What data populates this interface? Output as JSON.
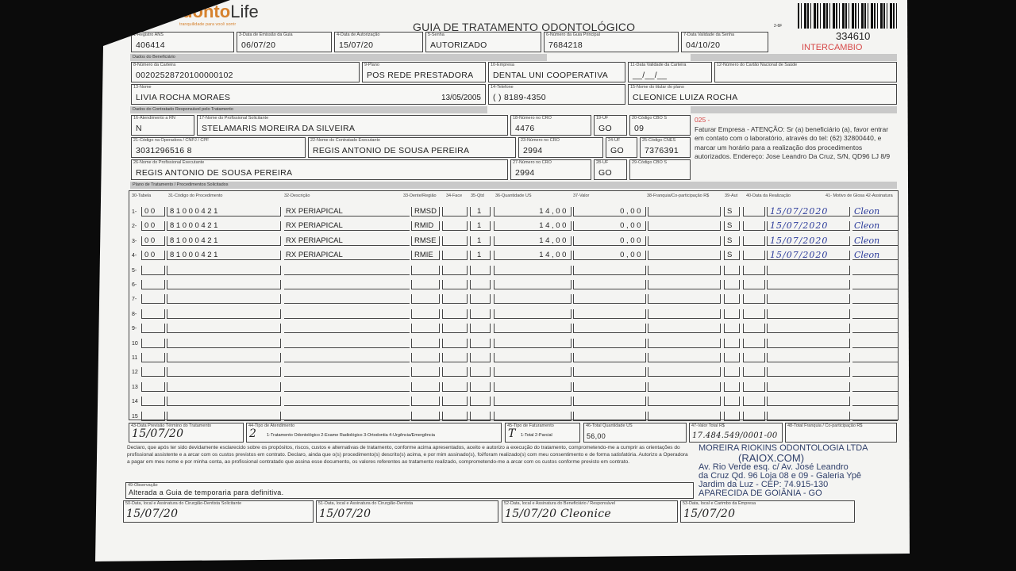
{
  "header": {
    "logo_a": "Odonto",
    "logo_b": "Life",
    "tagline": "tranquilidade para você sorrir",
    "title": "GUIA DE TRATAMENTO ODONTOLÓGICO",
    "form_code": "2-6F",
    "guide_number": "334610",
    "exchange_label": "INTERCAMBIO"
  },
  "fields": {
    "ans": {
      "label": "1-Registro ANS",
      "value": "406414"
    },
    "emissao": {
      "label": "3-Data de Emissão da Guia",
      "value": "06/07/20"
    },
    "autorizacao": {
      "label": "4-Data de Autorização",
      "value": "15/07/20"
    },
    "senha": {
      "label": "5-Senha",
      "value": "AUTORIZADO"
    },
    "guia_principal": {
      "label": "6-Número da Guia Principal",
      "value": "7684218"
    },
    "validade_senha": {
      "label": "7-Data Validade da Senha",
      "value": "04/10/20"
    },
    "carteira": {
      "label": "8-Número da Carteira",
      "value": "00202528720100000102"
    },
    "plano": {
      "label": "9-Plano",
      "value": "POS REDE PRESTADORA"
    },
    "empresa": {
      "label": "10-Empresa",
      "value": "DENTAL UNI  COOPERATIVA"
    },
    "validade_carteira": {
      "label": "11-Data Validade da Carteira",
      "value": "__/__/__"
    },
    "cns": {
      "label": "12-Número do Cartão Nacional de Saúde",
      "value": ""
    },
    "nome": {
      "label": "13-Nome",
      "value": "LIVIA ROCHA MORAES",
      "birth": "13/05/2005"
    },
    "telefone": {
      "label": "14-Telefone",
      "value": "(  ) 8189-4350"
    },
    "titular": {
      "label": "15-Nome do titular do plano",
      "value": "CLEONICE LUIZA ROCHA"
    },
    "rn": {
      "label": "16-Atendimento a RN",
      "value": "N"
    },
    "solicitante": {
      "label": "17-Nome do Profissional Solicitante",
      "value": "STELAMARIS MOREIRA DA SILVEIRA"
    },
    "cro1": {
      "label": "18-Número no CRO",
      "value": "4476"
    },
    "uf1": {
      "label": "19-UF",
      "value": "GO"
    },
    "cbo1": {
      "label": "20-Código CBO S",
      "value": "09"
    },
    "operadora": {
      "label": "21-Código na Operadora / CNPJ / CPF",
      "value": "3031296516 8"
    },
    "contratado": {
      "label": "22-Nome do Contratado Executante",
      "value": "REGIS ANTONIO DE SOUSA PEREIRA"
    },
    "cro2": {
      "label": "23-Número no CRO",
      "value": "2994"
    },
    "uf2": {
      "label": "24-UF",
      "value": "GO"
    },
    "cnes": {
      "label": "25-Código CNES",
      "value": "7376391"
    },
    "executante": {
      "label": "26-Nome do Profissional Executante",
      "value": "REGIS ANTONIO DE SOUSA PEREIRA"
    },
    "cro3": {
      "label": "27-Número no CRO",
      "value": "2994"
    },
    "uf3": {
      "label": "28-UF",
      "value": "GO"
    },
    "cbo3": {
      "label": "29-Código CBO S",
      "value": ""
    }
  },
  "sections": {
    "beneficiario": "Dados do Beneficiário",
    "contratado": "Dados do Contratado Responsável pelo Tratamento",
    "plano": "Plano de Tratamento / Procedimentos Solicitados"
  },
  "note": {
    "code": "025 -",
    "text": "Faturar Empresa - ATENÇÃO: Sr (a) beneficiário (a), favor entrar em contato com o laboratório, através do tel: (62) 32800440, e marcar um horário para a realização dos procedimentos autorizados. Endereço: Jose Leandro Da Cruz, S/N, QD96 LJ 8/9"
  },
  "table": {
    "headers": {
      "tabela": "30-Tabela",
      "codigo": "31-Código do Procedimento",
      "descricao": "32-Descrição",
      "dente": "33-Dente/Região",
      "face": "34-Face",
      "qtd": "35-Qtd",
      "us": "36-Quantidade US",
      "valor": "37-Valor",
      "franquia": "38-Franquia/Co-participação R$",
      "aut": "39-Aut",
      "data": "40-Data da Realização",
      "motivo": "41- Motivo de Glosa 42-Assinatura"
    },
    "rows": [
      {
        "n": "1-",
        "tabela": "00",
        "codigo": "81000421",
        "descricao": "RX PERIAPICAL",
        "dente": "RMSD",
        "qtd": "1",
        "us": "14,00",
        "valor": "0,00",
        "aut": "S",
        "data": "15/07/2020",
        "assinatura": "Cleon"
      },
      {
        "n": "2-",
        "tabela": "00",
        "codigo": "81000421",
        "descricao": "RX PERIAPICAL",
        "dente": "RMID",
        "qtd": "1",
        "us": "14,00",
        "valor": "0,00",
        "aut": "S",
        "data": "15/07/2020",
        "assinatura": "Cleon"
      },
      {
        "n": "3-",
        "tabela": "00",
        "codigo": "81000421",
        "descricao": "RX PERIAPICAL",
        "dente": "RMSE",
        "qtd": "1",
        "us": "14,00",
        "valor": "0,00",
        "aut": "S",
        "data": "15/07/2020",
        "assinatura": "Cleon"
      },
      {
        "n": "4-",
        "tabela": "00",
        "codigo": "81000421",
        "descricao": "RX PERIAPICAL",
        "dente": "RMIE",
        "qtd": "1",
        "us": "14,00",
        "valor": "0,00",
        "aut": "S",
        "data": "15/07/2020",
        "assinatura": "Cleon"
      },
      {
        "n": "5-"
      },
      {
        "n": "6-"
      },
      {
        "n": "7-"
      },
      {
        "n": "8-"
      },
      {
        "n": "9-"
      },
      {
        "n": "10"
      },
      {
        "n": "11"
      },
      {
        "n": "12"
      },
      {
        "n": "13"
      },
      {
        "n": "14"
      },
      {
        "n": "15"
      }
    ]
  },
  "footer": {
    "previsao": {
      "label": "43-Data Previsão Término do Tratamento",
      "value": "15/07/20"
    },
    "tipo_atendimento": {
      "label": "44-Tipo de Atendimento",
      "value": "2",
      "options": "1-Tratamento Odontológico  2-Exame Radiológico  3-Ortodontia  4-Urgência/Emergência"
    },
    "faturamento": {
      "label": "45-Tipo de Faturamento",
      "value": "T",
      "options": "1-Total  2-Parcial"
    },
    "total_us": {
      "label": "46-Total Quantidade US",
      "value": "56,00"
    },
    "valor_total": {
      "label": "47-Valor Total R$",
      "value": "17.484.549/0001-00"
    },
    "total_franquia": {
      "label": "48-Total Franquia / Co-participação R$",
      "value": ""
    },
    "declaration": "Declaro, que após ter sido devidamente esclarecido sobre os propósitos, riscos, custos e alternativas de tratamento, conforme acima apresentados, aceito e autorizo a execução do tratamento, comprometendo-me a cumprir as orientações do profissional assistente e a arcar com os custos previstos em contrato. Declaro, ainda que o(s) procedimento(s) descrito(s) acima, e por mim assinado(s), foi/foram realizado(s) com meu consentimento e de forma satisfatória. Autorizo a Operadora a pagar em meu nome e por minha conta, ao profissional contratado que assina esse documento, os valores referentes ao tratamento realizado, comprometendo-me a arcar com os custos conforme previsto em contrato.",
    "observacao": {
      "label": "49-Observação",
      "value": "Alterada a Guia de temporaria para definitiva."
    },
    "sig50": {
      "label": "50-Data, local e Assinatura do Cirurgião-Dentista Solicitante",
      "value": "15/07/20"
    },
    "sig51": {
      "label": "51-Data, local e Assinatura do Cirurgião-Dentista",
      "value": "15/07/20"
    },
    "sig52": {
      "label": "52-Data, local e Assinatura do Beneficiário / Responsável",
      "value": "15/07/20 Cleonice"
    },
    "sig53": {
      "label": "53-Data, local e Carimbo da Empresa",
      "value": "15/07/20"
    }
  },
  "stamp": {
    "lines": [
      "MOREIRA RIOKINS ODONTOLOGIA LTDA",
      "(RAIOX.COM)",
      "Av. Rio Verde esq. c/ Av. José Leandro",
      "da Cruz Qd. 96 Loja 08 e 09 - Galeria Ypê",
      "Jardim da Luz - CEP: 74.915-130",
      "APARECIDA DE GOIÂNIA - GO"
    ]
  }
}
